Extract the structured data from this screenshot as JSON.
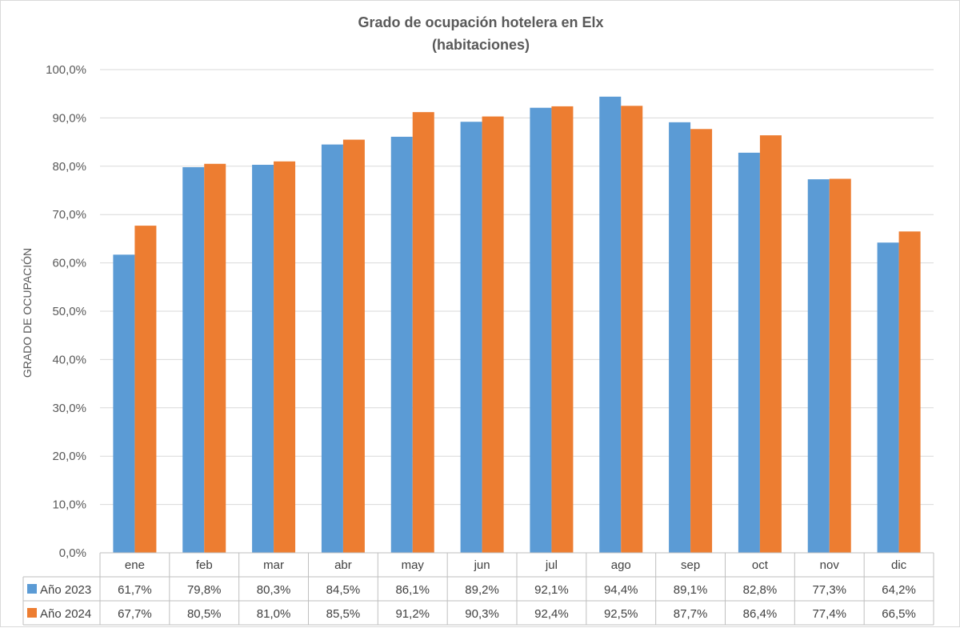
{
  "chart_data": {
    "type": "bar",
    "title": "Grado de ocupación hotelera en Elx",
    "subtitle": "(habitaciones)",
    "ylabel": "GRADO DE OCUPACIÓN",
    "xlabel": "",
    "ylim": [
      0,
      100
    ],
    "y_ticks": [
      0,
      10,
      20,
      30,
      40,
      50,
      60,
      70,
      80,
      90,
      100
    ],
    "y_tick_labels": [
      "0,0%",
      "10,0%",
      "20,0%",
      "30,0%",
      "40,0%",
      "50,0%",
      "60,0%",
      "70,0%",
      "80,0%",
      "90,0%",
      "100,0%"
    ],
    "grid": true,
    "legend": "data-table",
    "categories": [
      "ene",
      "feb",
      "mar",
      "abr",
      "may",
      "jun",
      "jul",
      "ago",
      "sep",
      "oct",
      "nov",
      "dic"
    ],
    "series": [
      {
        "name": "Año 2023",
        "color": "#5b9bd5",
        "values": [
          61.7,
          79.8,
          80.3,
          84.5,
          86.1,
          89.2,
          92.1,
          94.4,
          89.1,
          82.8,
          77.3,
          64.2
        ],
        "labels": [
          "61,7%",
          "79,8%",
          "80,3%",
          "84,5%",
          "86,1%",
          "89,2%",
          "92,1%",
          "94,4%",
          "89,1%",
          "82,8%",
          "77,3%",
          "64,2%"
        ]
      },
      {
        "name": "Año 2024",
        "color": "#ed7d31",
        "values": [
          67.7,
          80.5,
          81.0,
          85.5,
          91.2,
          90.3,
          92.4,
          92.5,
          87.7,
          86.4,
          77.4,
          66.5
        ],
        "labels": [
          "67,7%",
          "80,5%",
          "81,0%",
          "85,5%",
          "91,2%",
          "90,3%",
          "92,4%",
          "92,5%",
          "87,7%",
          "86,4%",
          "77,4%",
          "66,5%"
        ]
      }
    ]
  }
}
